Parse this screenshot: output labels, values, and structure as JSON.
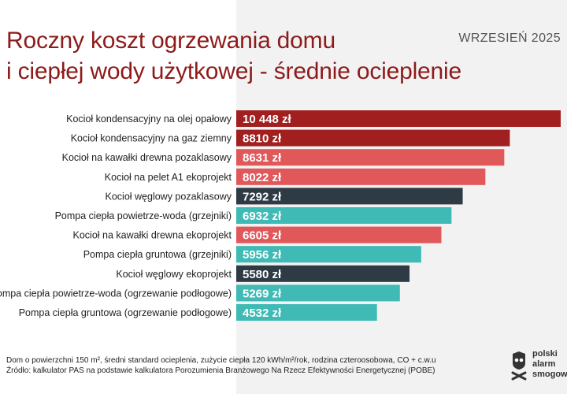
{
  "header": {
    "title_line1": "Roczny koszt ogrzewania domu",
    "title_line2": "i ciepłej wody użytkowej - średnie ocieplenie",
    "date": "WRZESIEŃ 2025"
  },
  "colors": {
    "dark_red": "#a11f1f",
    "coral": "#e0585a",
    "charcoal": "#2e3a44",
    "teal": "#3fbab5",
    "title": "#8e1b1b"
  },
  "chart_data": {
    "type": "bar",
    "orientation": "horizontal",
    "categories": [
      "Kocioł kondensacyjny na olej opałowy",
      "Kocioł kondensacyjny na gaz ziemny",
      "Kocioł na kawałki drewna pozaklasowy",
      "Kocioł na pelet A1 ekoprojekt",
      "Kocioł węglowy pozaklasowy",
      "Pompa ciepła powietrze-woda (grzejniki)",
      "Kocioł na kawałki drewna ekoprojekt",
      "Pompa ciepła gruntowa (grzejniki)",
      "Kocioł węglowy ekoprojekt",
      "Pompa ciepła powietrze-woda (ogrzewanie podłogowe)",
      "Pompa ciepła gruntowa (ogrzewanie podłogowe)"
    ],
    "values": [
      10448,
      8810,
      8631,
      8022,
      7292,
      6932,
      6605,
      5956,
      5580,
      5269,
      4532
    ],
    "value_labels": [
      "10 448 zł",
      "8810 zł",
      "8631 zł",
      "8022 zł",
      "7292 zł",
      "6932 zł",
      "6605 zł",
      "5956 zł",
      "5580 zł",
      "5269 zł",
      "4532 zł"
    ],
    "bar_colors": [
      "#a11f1f",
      "#a11f1f",
      "#e0585a",
      "#e0585a",
      "#2e3a44",
      "#3fbab5",
      "#e0585a",
      "#3fbab5",
      "#2e3a44",
      "#3fbab5",
      "#3fbab5"
    ],
    "unit": "zł",
    "xlim": [
      0,
      10448
    ],
    "grid": false,
    "legend": "none"
  },
  "footnote": {
    "line1": "Dom o powierzchni 150 m², średni standard ocieplenia, zużycie ciepła 120 kWh/m²/rok, rodzina czteroosobowa, CO + c.w.u",
    "line2": "Źródło: kalkulator PAS na podstawie kalkulatora Porozumienia Branżowego Na Rzecz Efektywności Energetycznej (POBE)"
  },
  "logo": {
    "line1": "polski",
    "line2": "alarm",
    "line3": "smogowy",
    "icon": "smog-alarm-mask-icon"
  }
}
